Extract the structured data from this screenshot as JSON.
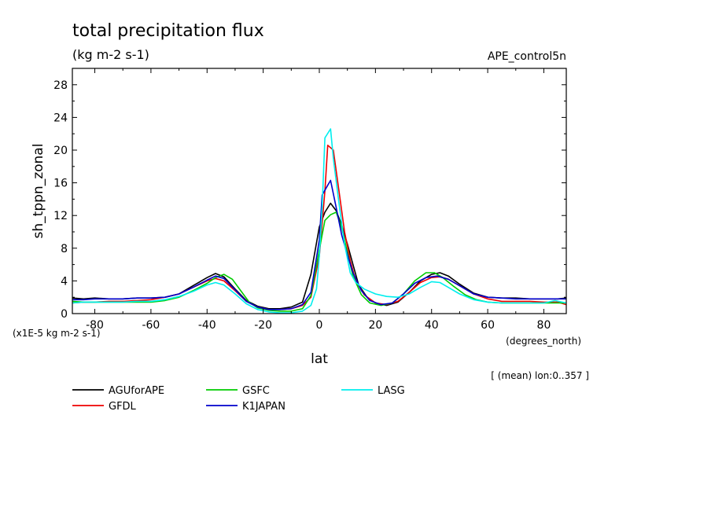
{
  "chart_data": {
    "type": "line",
    "title": "total precipitation flux",
    "units_label": "(kg m-2 s-1)",
    "experiment": "APE_control5n",
    "xlabel": "lat",
    "x_units": "(degrees_north)",
    "ylabel": "sh_tppn_zonal",
    "y_scale_note": "(x1E-5 kg m-2 s-1)",
    "subset_note": "[ (mean) lon:0..357 ]",
    "xlim": [
      -88,
      88
    ],
    "ylim": [
      0,
      30
    ],
    "x_ticks": [
      -80,
      -60,
      -40,
      -20,
      0,
      20,
      40,
      60,
      80
    ],
    "x_tick_labels": [
      "-80",
      "-60",
      "-40",
      "-20",
      "0",
      "20",
      "40",
      "60",
      "80"
    ],
    "y_ticks": [
      0,
      4,
      8,
      12,
      16,
      20,
      24,
      28
    ],
    "y_tick_labels": [
      "0",
      "4",
      "8",
      "12",
      "16",
      "20",
      "24",
      "28"
    ],
    "legend_placement": "bottom",
    "series": [
      {
        "name": "AGUforAPE",
        "color": "#000000",
        "points": [
          [
            -88,
            1.9
          ],
          [
            -84,
            1.8
          ],
          [
            -80,
            1.9
          ],
          [
            -75,
            1.8
          ],
          [
            -70,
            1.8
          ],
          [
            -65,
            1.9
          ],
          [
            -60,
            1.9
          ],
          [
            -55,
            2.0
          ],
          [
            -50,
            2.4
          ],
          [
            -45,
            3.4
          ],
          [
            -40,
            4.4
          ],
          [
            -37,
            4.9
          ],
          [
            -34,
            4.5
          ],
          [
            -30,
            3.0
          ],
          [
            -26,
            1.6
          ],
          [
            -22,
            0.9
          ],
          [
            -18,
            0.6
          ],
          [
            -14,
            0.6
          ],
          [
            -10,
            0.8
          ],
          [
            -6,
            1.4
          ],
          [
            -3,
            4.8
          ],
          [
            0,
            10.6
          ],
          [
            2,
            12.4
          ],
          [
            4,
            13.5
          ],
          [
            6,
            12.6
          ],
          [
            8,
            10.8
          ],
          [
            10,
            8.5
          ],
          [
            12,
            6.0
          ],
          [
            14,
            3.5
          ],
          [
            17,
            2.0
          ],
          [
            20,
            1.3
          ],
          [
            24,
            1.0
          ],
          [
            28,
            1.4
          ],
          [
            32,
            2.6
          ],
          [
            36,
            4.0
          ],
          [
            40,
            4.8
          ],
          [
            43,
            5.0
          ],
          [
            46,
            4.6
          ],
          [
            50,
            3.6
          ],
          [
            55,
            2.5
          ],
          [
            60,
            2.0
          ],
          [
            65,
            1.9
          ],
          [
            70,
            1.9
          ],
          [
            75,
            1.8
          ],
          [
            80,
            1.8
          ],
          [
            85,
            1.8
          ],
          [
            88,
            1.9
          ]
        ]
      },
      {
        "name": "GFDL",
        "color": "#ee0000",
        "points": [
          [
            -88,
            1.3
          ],
          [
            -84,
            1.4
          ],
          [
            -80,
            1.4
          ],
          [
            -75,
            1.5
          ],
          [
            -70,
            1.5
          ],
          [
            -65,
            1.6
          ],
          [
            -60,
            1.7
          ],
          [
            -55,
            2.0
          ],
          [
            -50,
            2.4
          ],
          [
            -45,
            3.2
          ],
          [
            -40,
            4.0
          ],
          [
            -37,
            4.3
          ],
          [
            -34,
            4.0
          ],
          [
            -30,
            2.8
          ],
          [
            -26,
            1.5
          ],
          [
            -22,
            0.8
          ],
          [
            -18,
            0.5
          ],
          [
            -14,
            0.5
          ],
          [
            -10,
            0.6
          ],
          [
            -6,
            1.0
          ],
          [
            -3,
            2.0
          ],
          [
            0,
            7.0
          ],
          [
            2,
            15.0
          ],
          [
            3,
            20.6
          ],
          [
            5,
            20.0
          ],
          [
            7,
            15.0
          ],
          [
            9,
            10.0
          ],
          [
            11,
            6.5
          ],
          [
            13,
            4.0
          ],
          [
            16,
            2.3
          ],
          [
            20,
            1.3
          ],
          [
            24,
            1.1
          ],
          [
            28,
            1.5
          ],
          [
            32,
            2.6
          ],
          [
            36,
            3.8
          ],
          [
            40,
            4.4
          ],
          [
            43,
            4.5
          ],
          [
            46,
            4.2
          ],
          [
            50,
            3.4
          ],
          [
            55,
            2.4
          ],
          [
            60,
            1.8
          ],
          [
            65,
            1.5
          ],
          [
            70,
            1.5
          ],
          [
            75,
            1.5
          ],
          [
            80,
            1.4
          ],
          [
            85,
            1.4
          ],
          [
            88,
            1.1
          ]
        ]
      },
      {
        "name": "GSFC",
        "color": "#00cc00",
        "points": [
          [
            -88,
            1.5
          ],
          [
            -84,
            1.4
          ],
          [
            -80,
            1.4
          ],
          [
            -75,
            1.4
          ],
          [
            -70,
            1.4
          ],
          [
            -65,
            1.4
          ],
          [
            -60,
            1.4
          ],
          [
            -55,
            1.6
          ],
          [
            -50,
            2.0
          ],
          [
            -45,
            2.8
          ],
          [
            -40,
            3.7
          ],
          [
            -37,
            4.4
          ],
          [
            -34,
            4.8
          ],
          [
            -31,
            4.2
          ],
          [
            -28,
            2.8
          ],
          [
            -25,
            1.4
          ],
          [
            -22,
            0.7
          ],
          [
            -18,
            0.4
          ],
          [
            -14,
            0.3
          ],
          [
            -10,
            0.3
          ],
          [
            -6,
            0.6
          ],
          [
            -3,
            2.2
          ],
          [
            0,
            7.8
          ],
          [
            2,
            11.4
          ],
          [
            4,
            12.1
          ],
          [
            6,
            12.4
          ],
          [
            8,
            10.5
          ],
          [
            10,
            7.5
          ],
          [
            12,
            4.6
          ],
          [
            15,
            2.3
          ],
          [
            18,
            1.3
          ],
          [
            22,
            1.0
          ],
          [
            26,
            1.3
          ],
          [
            30,
            2.4
          ],
          [
            34,
            4.0
          ],
          [
            38,
            5.0
          ],
          [
            41,
            5.0
          ],
          [
            44,
            4.4
          ],
          [
            48,
            3.3
          ],
          [
            52,
            2.3
          ],
          [
            56,
            1.7
          ],
          [
            60,
            1.4
          ],
          [
            65,
            1.3
          ],
          [
            70,
            1.3
          ],
          [
            75,
            1.3
          ],
          [
            80,
            1.3
          ],
          [
            85,
            1.3
          ],
          [
            88,
            1.3
          ]
        ]
      },
      {
        "name": "K1JAPAN",
        "color": "#0000cc",
        "points": [
          [
            -88,
            1.7
          ],
          [
            -84,
            1.7
          ],
          [
            -80,
            1.8
          ],
          [
            -75,
            1.8
          ],
          [
            -70,
            1.8
          ],
          [
            -65,
            1.9
          ],
          [
            -60,
            1.9
          ],
          [
            -55,
            2.0
          ],
          [
            -50,
            2.4
          ],
          [
            -45,
            3.2
          ],
          [
            -40,
            4.1
          ],
          [
            -37,
            4.6
          ],
          [
            -34,
            4.3
          ],
          [
            -30,
            2.9
          ],
          [
            -26,
            1.5
          ],
          [
            -22,
            0.8
          ],
          [
            -18,
            0.5
          ],
          [
            -14,
            0.5
          ],
          [
            -10,
            0.6
          ],
          [
            -6,
            1.1
          ],
          [
            -3,
            2.6
          ],
          [
            0,
            9.0
          ],
          [
            1,
            14.5
          ],
          [
            3,
            15.7
          ],
          [
            4,
            16.3
          ],
          [
            6,
            13.0
          ],
          [
            8,
            9.6
          ],
          [
            10,
            7.2
          ],
          [
            12,
            5.0
          ],
          [
            15,
            2.8
          ],
          [
            18,
            1.6
          ],
          [
            22,
            1.1
          ],
          [
            26,
            1.3
          ],
          [
            30,
            2.4
          ],
          [
            34,
            3.7
          ],
          [
            38,
            4.4
          ],
          [
            42,
            4.6
          ],
          [
            46,
            4.2
          ],
          [
            50,
            3.4
          ],
          [
            55,
            2.4
          ],
          [
            60,
            2.0
          ],
          [
            65,
            1.9
          ],
          [
            70,
            1.8
          ],
          [
            75,
            1.8
          ],
          [
            80,
            1.8
          ],
          [
            85,
            1.8
          ],
          [
            88,
            1.8
          ]
        ]
      },
      {
        "name": "LASG",
        "color": "#00eeee",
        "points": [
          [
            -88,
            1.3
          ],
          [
            -84,
            1.4
          ],
          [
            -80,
            1.4
          ],
          [
            -75,
            1.4
          ],
          [
            -70,
            1.4
          ],
          [
            -65,
            1.5
          ],
          [
            -60,
            1.5
          ],
          [
            -55,
            1.7
          ],
          [
            -50,
            2.1
          ],
          [
            -45,
            2.7
          ],
          [
            -40,
            3.5
          ],
          [
            -37,
            3.8
          ],
          [
            -34,
            3.5
          ],
          [
            -30,
            2.4
          ],
          [
            -26,
            1.2
          ],
          [
            -22,
            0.5
          ],
          [
            -18,
            0.2
          ],
          [
            -14,
            0.1
          ],
          [
            -10,
            0.1
          ],
          [
            -6,
            0.3
          ],
          [
            -3,
            1.0
          ],
          [
            -1,
            3.0
          ],
          [
            0,
            7.0
          ],
          [
            1,
            13.0
          ],
          [
            2,
            21.5
          ],
          [
            4,
            22.6
          ],
          [
            5,
            19.0
          ],
          [
            7,
            13.5
          ],
          [
            9,
            8.5
          ],
          [
            11,
            5.0
          ],
          [
            13,
            3.8
          ],
          [
            16,
            3.0
          ],
          [
            20,
            2.4
          ],
          [
            24,
            2.1
          ],
          [
            28,
            2.0
          ],
          [
            32,
            2.4
          ],
          [
            36,
            3.2
          ],
          [
            40,
            3.9
          ],
          [
            43,
            3.8
          ],
          [
            46,
            3.2
          ],
          [
            50,
            2.4
          ],
          [
            55,
            1.7
          ],
          [
            60,
            1.4
          ],
          [
            65,
            1.3
          ],
          [
            70,
            1.3
          ],
          [
            75,
            1.3
          ],
          [
            80,
            1.3
          ],
          [
            84,
            1.6
          ],
          [
            88,
            1.3
          ]
        ]
      }
    ]
  }
}
